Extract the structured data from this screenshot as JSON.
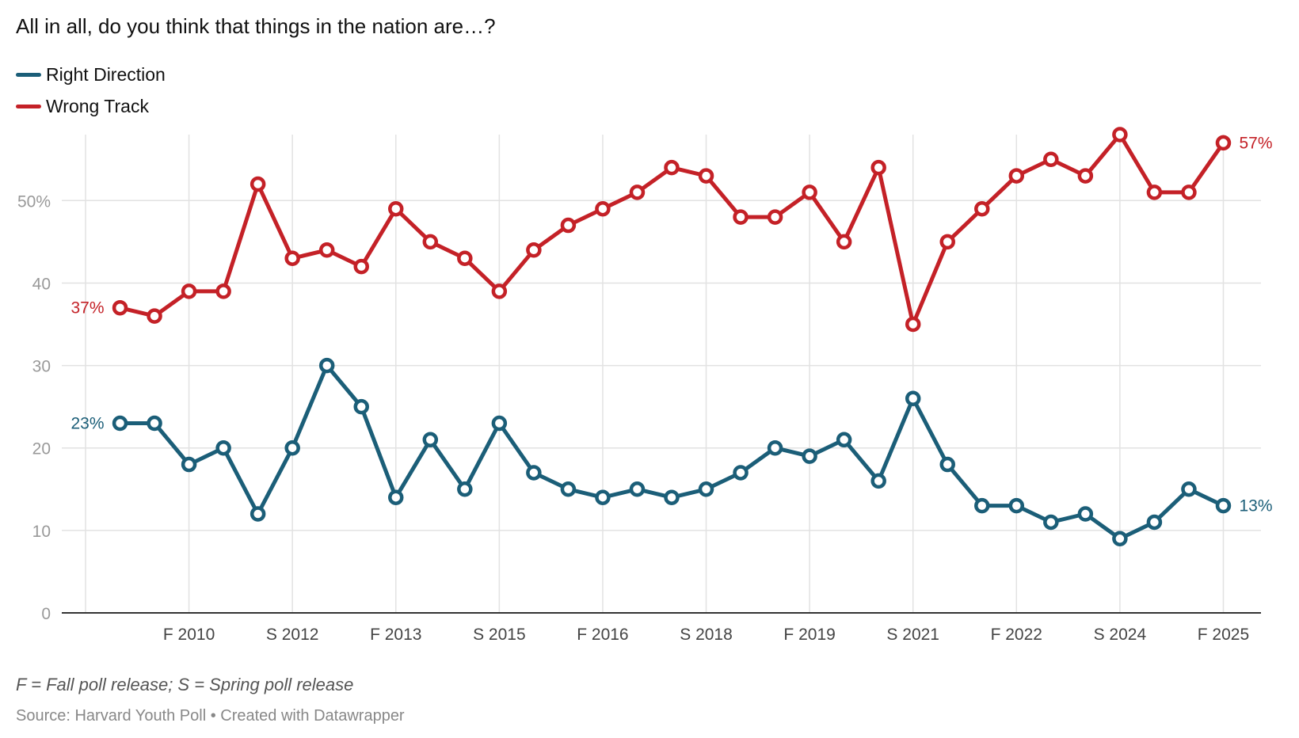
{
  "header": {
    "title": "All in all, do you think that things in the nation are…?"
  },
  "footer": {
    "notes": "F = Fall poll release; S = Spring poll release",
    "source": "Source: Harvard Youth Poll • Created with Datawrapper"
  },
  "colors": {
    "right_direction": "#1b5e78",
    "wrong_track": "#c42127",
    "grid": "#e2e2e2",
    "axis": "#333333"
  },
  "chart_data": {
    "type": "line",
    "x": [
      1,
      2,
      3,
      4,
      5,
      6,
      7,
      8,
      9,
      10,
      11,
      12,
      13,
      14,
      15,
      16,
      17,
      18,
      19,
      20,
      21,
      22,
      23,
      24,
      25,
      26,
      27,
      28,
      29,
      30,
      31,
      32,
      33
    ],
    "xlim": [
      0,
      34
    ],
    "x_ticks": [
      {
        "x": 0,
        "label": ""
      },
      {
        "x": 3,
        "label": "F 2010"
      },
      {
        "x": 6,
        "label": "S 2012"
      },
      {
        "x": 9,
        "label": "F 2013"
      },
      {
        "x": 12,
        "label": "S 2015"
      },
      {
        "x": 15,
        "label": "F 2016"
      },
      {
        "x": 18,
        "label": "S 2018"
      },
      {
        "x": 21,
        "label": "F 2019"
      },
      {
        "x": 24,
        "label": "S 2021"
      },
      {
        "x": 27,
        "label": "F 2022"
      },
      {
        "x": 30,
        "label": "S 2024"
      },
      {
        "x": 33,
        "label": "F 2025"
      }
    ],
    "y_ticks": [
      {
        "v": 0,
        "label": "0"
      },
      {
        "v": 10,
        "label": "10"
      },
      {
        "v": 20,
        "label": "20"
      },
      {
        "v": 30,
        "label": "30"
      },
      {
        "v": 40,
        "label": "40"
      },
      {
        "v": 50,
        "label": "50%"
      }
    ],
    "ylim": [
      0,
      58
    ],
    "grid": true,
    "legend_position": "top-left",
    "series": [
      {
        "name": "Right Direction",
        "color": "#1b5e78",
        "values": [
          23,
          23,
          18,
          20,
          12,
          20,
          30,
          25,
          14,
          21,
          15,
          23,
          17,
          15,
          14,
          15,
          14,
          15,
          17,
          20,
          19,
          21,
          16,
          26,
          18,
          13,
          13,
          11,
          12,
          9,
          11,
          15,
          13
        ],
        "start_label": "23%",
        "end_label": "13%"
      },
      {
        "name": "Wrong Track",
        "color": "#c42127",
        "values": [
          37,
          36,
          39,
          39,
          52,
          43,
          44,
          42,
          49,
          45,
          43,
          39,
          44,
          47,
          49,
          51,
          54,
          53,
          48,
          48,
          51,
          45,
          54,
          35,
          45,
          49,
          53,
          55,
          53,
          58,
          51,
          51,
          57
        ],
        "start_label": "37%",
        "end_label": "57%"
      }
    ]
  }
}
